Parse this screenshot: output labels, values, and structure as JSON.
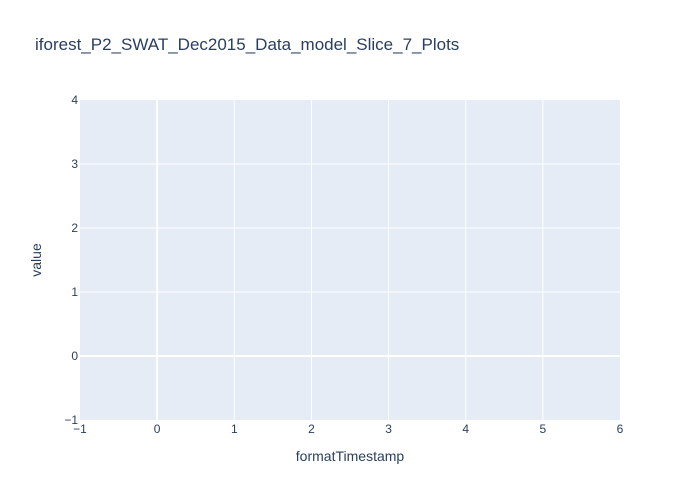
{
  "chart_data": {
    "type": "line",
    "title": "iforest_P2_SWAT_Dec2015_Data_model_Slice_7_Plots",
    "xlabel": "formatTimestamp",
    "ylabel": "value",
    "xlim": [
      -1,
      6
    ],
    "ylim": [
      -1,
      4
    ],
    "x_ticks": [
      -1,
      0,
      1,
      2,
      3,
      4,
      5,
      6
    ],
    "y_ticks": [
      -1,
      0,
      1,
      2,
      3,
      4
    ],
    "x_tick_labels": [
      "−1",
      "0",
      "1",
      "2",
      "3",
      "4",
      "5",
      "6"
    ],
    "y_tick_labels": [
      "−1",
      "0",
      "1",
      "2",
      "3",
      "4"
    ],
    "grid": true,
    "series": []
  },
  "colors": {
    "plot_background": "#e5ecf6",
    "grid": "#ffffff",
    "text": "#2a3f5f"
  }
}
